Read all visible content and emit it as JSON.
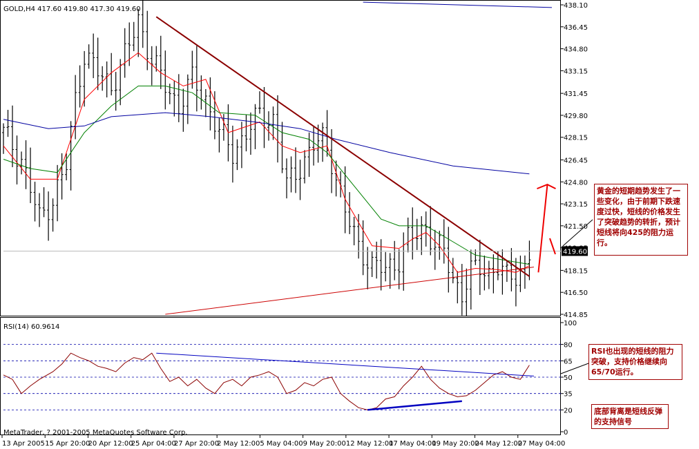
{
  "header": {
    "symbol_label": "GOLD,H4 417.60 419.80 417.30 419.60"
  },
  "chart_data": [
    {
      "type": "ohlc",
      "symbol": "GOLD",
      "timeframe": "H4",
      "ylim": [
        414.85,
        438.1
      ],
      "yticks": [
        "438.10",
        "436.45",
        "434.80",
        "433.15",
        "431.45",
        "429.80",
        "428.15",
        "426.45",
        "424.80",
        "423.15",
        "421.50",
        "419.85",
        "418.15",
        "416.50",
        "414.85"
      ],
      "x_labels": [
        "13 Apr 2005",
        "15 Apr 20:00",
        "20 Apr 12:00",
        "25 Apr 04:00",
        "27 Apr 20:00",
        "2 May 12:00",
        "5 May 04:00",
        "9 May 20:00",
        "12 May 12:00",
        "17 May 04:00",
        "19 May 20:00",
        "24 May 12:00",
        "27 May 04:00"
      ],
      "last_price": "419.60",
      "ohlc_last": {
        "open": 417.6,
        "high": 419.8,
        "low": 417.3,
        "close": 419.6
      },
      "close_path": [
        [
          0,
          428.5
        ],
        [
          4,
          426.5
        ],
        [
          8,
          422.0
        ],
        [
          11,
          423.5
        ],
        [
          14,
          426.0
        ],
        [
          16,
          431.0
        ],
        [
          18,
          434.5
        ],
        [
          21,
          433.0
        ],
        [
          24,
          432.0
        ],
        [
          28,
          435.0
        ],
        [
          30,
          437.0
        ],
        [
          33,
          434.0
        ],
        [
          36,
          432.0
        ],
        [
          39,
          430.5
        ],
        [
          42,
          432.5
        ],
        [
          45,
          431.0
        ],
        [
          48,
          428.5
        ],
        [
          51,
          427.0
        ],
        [
          54,
          428.5
        ],
        [
          57,
          429.8
        ],
        [
          60,
          429.5
        ],
        [
          63,
          424.5
        ],
        [
          66,
          426.0
        ],
        [
          69,
          427.5
        ],
        [
          71,
          428.0
        ],
        [
          73,
          426.5
        ],
        [
          76,
          422.5
        ],
        [
          79,
          420.0
        ],
        [
          82,
          418.5
        ],
        [
          85,
          418.2
        ],
        [
          88,
          419.0
        ],
        [
          90,
          420.5
        ],
        [
          92,
          420.8
        ],
        [
          94,
          421.5
        ],
        [
          96,
          420.0
        ],
        [
          98,
          419.5
        ],
        [
          100,
          417.5
        ],
        [
          102,
          416.5
        ],
        [
          104,
          418.0
        ],
        [
          106,
          418.3
        ],
        [
          108,
          418.0
        ],
        [
          110,
          418.5
        ],
        [
          112,
          417.5
        ],
        [
          114,
          417.8
        ],
        [
          116,
          418.5
        ],
        [
          117,
          419.5
        ]
      ],
      "series": [
        {
          "name": "",
          "color": "#ff0000",
          "values": [
            [
              0,
              427.5
            ],
            [
              6,
              425.0
            ],
            [
              12,
              425.0
            ],
            [
              18,
              431.0
            ],
            [
              24,
              433.0
            ],
            [
              30,
              434.5
            ],
            [
              35,
              433.0
            ],
            [
              40,
              432.0
            ],
            [
              45,
              432.5
            ],
            [
              50,
              428.5
            ],
            [
              57,
              429.3
            ],
            [
              62,
              427.5
            ],
            [
              66,
              427.0
            ],
            [
              72,
              427.5
            ],
            [
              76,
              423.5
            ],
            [
              82,
              420.0
            ],
            [
              88,
              419.8
            ],
            [
              91,
              420.5
            ],
            [
              94,
              421.0
            ],
            [
              97,
              420.0
            ],
            [
              101,
              418.0
            ],
            [
              105,
              418.3
            ],
            [
              110,
              418.2
            ],
            [
              114,
              418.0
            ],
            [
              117,
              418.5
            ]
          ]
        },
        {
          "name": "",
          "color": "#008000",
          "values": [
            [
              0,
              426.5
            ],
            [
              6,
              425.8
            ],
            [
              12,
              425.5
            ],
            [
              18,
              428.5
            ],
            [
              24,
              430.5
            ],
            [
              30,
              432.0
            ],
            [
              36,
              432.0
            ],
            [
              42,
              431.5
            ],
            [
              48,
              430.0
            ],
            [
              56,
              429.8
            ],
            [
              62,
              428.5
            ],
            [
              68,
              428.0
            ],
            [
              72,
              427.0
            ],
            [
              78,
              424.5
            ],
            [
              84,
              422.0
            ],
            [
              88,
              421.5
            ],
            [
              94,
              421.5
            ],
            [
              100,
              420.3
            ],
            [
              105,
              419.3
            ],
            [
              110,
              419.0
            ],
            [
              117,
              418.6
            ]
          ]
        },
        {
          "name": "",
          "color": "#0000a0",
          "values": [
            [
              0,
              429.5
            ],
            [
              10,
              428.8
            ],
            [
              18,
              429.0
            ],
            [
              24,
              429.7
            ],
            [
              36,
              430.0
            ],
            [
              46,
              429.7
            ],
            [
              56,
              429.3
            ],
            [
              66,
              428.8
            ],
            [
              74,
              428.0
            ],
            [
              86,
              427.0
            ],
            [
              100,
              426.0
            ],
            [
              117,
              425.4
            ]
          ]
        }
      ],
      "trendlines": [
        {
          "name": "",
          "color": "#8b0000",
          "from": [
            34,
            437.2
          ],
          "to": [
            117,
            417.7
          ]
        },
        {
          "name": "",
          "color": "#cc0000",
          "from": [
            36,
            414.85
          ],
          "to": [
            118,
            418.4
          ]
        },
        {
          "name": "",
          "color": "#0000a0",
          "from": [
            80,
            438.3
          ],
          "to": [
            122,
            437.9
          ]
        }
      ]
    },
    {
      "type": "line",
      "indicator_label": "RSI(14) 60.9614",
      "ylim": [
        0,
        100
      ],
      "yticks": [
        "100",
        "80",
        "65",
        "50",
        "35",
        "20",
        "0"
      ],
      "levels": [
        80,
        65,
        50,
        35,
        20
      ],
      "values": [
        [
          0,
          52
        ],
        [
          2,
          48
        ],
        [
          4,
          35
        ],
        [
          6,
          42
        ],
        [
          8,
          48
        ],
        [
          11,
          55
        ],
        [
          13,
          62
        ],
        [
          15,
          72
        ],
        [
          17,
          68
        ],
        [
          19,
          65
        ],
        [
          21,
          60
        ],
        [
          23,
          58
        ],
        [
          25,
          55
        ],
        [
          27,
          63
        ],
        [
          29,
          68
        ],
        [
          31,
          66
        ],
        [
          33,
          72
        ],
        [
          35,
          58
        ],
        [
          37,
          46
        ],
        [
          39,
          50
        ],
        [
          41,
          42
        ],
        [
          43,
          48
        ],
        [
          45,
          40
        ],
        [
          47,
          35
        ],
        [
          49,
          45
        ],
        [
          51,
          48
        ],
        [
          53,
          42
        ],
        [
          55,
          50
        ],
        [
          57,
          52
        ],
        [
          59,
          55
        ],
        [
          61,
          50
        ],
        [
          63,
          35
        ],
        [
          65,
          38
        ],
        [
          67,
          45
        ],
        [
          69,
          42
        ],
        [
          71,
          48
        ],
        [
          73,
          50
        ],
        [
          75,
          35
        ],
        [
          77,
          28
        ],
        [
          79,
          22
        ],
        [
          81,
          20
        ],
        [
          83,
          22
        ],
        [
          85,
          30
        ],
        [
          87,
          32
        ],
        [
          89,
          42
        ],
        [
          91,
          50
        ],
        [
          93,
          60
        ],
        [
          95,
          48
        ],
        [
          97,
          40
        ],
        [
          99,
          35
        ],
        [
          101,
          32
        ],
        [
          103,
          33
        ],
        [
          105,
          38
        ],
        [
          107,
          45
        ],
        [
          109,
          52
        ],
        [
          111,
          55
        ],
        [
          113,
          50
        ],
        [
          115,
          48
        ],
        [
          117,
          61
        ]
      ],
      "trendlines": [
        {
          "color": "#0000c0",
          "from": [
            34,
            72
          ],
          "to": [
            118,
            51
          ],
          "thickness": "thin"
        },
        {
          "color": "#0000c0",
          "from": [
            81,
            20
          ],
          "to": [
            102,
            28
          ],
          "thickness": "thick"
        }
      ]
    }
  ],
  "annotations": {
    "main": "黄金的短期趋势发生了一些变化，由于前期下跌速度过快，短线的价格发生了突破趋势的转折，预计短线将向425的阻力运行。",
    "rsi": "RSI也出现的短线的阻力突破，支持价格继续向65/70运行。",
    "divergence": "底部背离是短线反弹的支持信号"
  },
  "footer": {
    "copyright": "MetaTrader, ? 2001-2005 MetaQuotes Software Corp."
  }
}
